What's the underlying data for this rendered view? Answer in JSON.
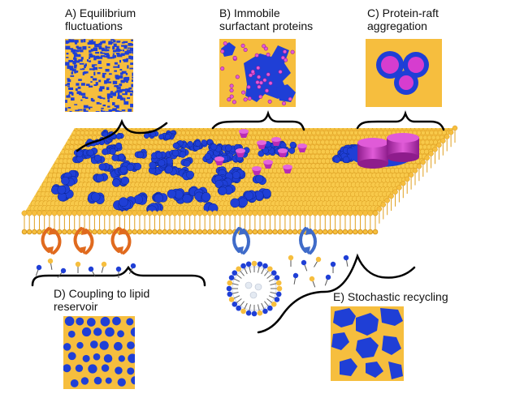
{
  "panels": {
    "a": {
      "label": "A) Equilibrium\nfluctuations"
    },
    "b": {
      "label": "B) Immobile\nsurfactant proteins"
    },
    "c": {
      "label": "C) Protein-raft\naggregation"
    },
    "d": {
      "label": "D) Coupling to lipid\nreservoir"
    },
    "e": {
      "label": "E) Stochastic recycling"
    }
  },
  "colors": {
    "lipid_yellow": "#F6BE3E",
    "raft_blue": "#1F3FD6",
    "protein_magenta": "#D63DCF",
    "protein_dark_magenta": "#A21FA0",
    "arrow_orange": "#E06A1E",
    "arrow_blue": "#3F6BC9"
  }
}
